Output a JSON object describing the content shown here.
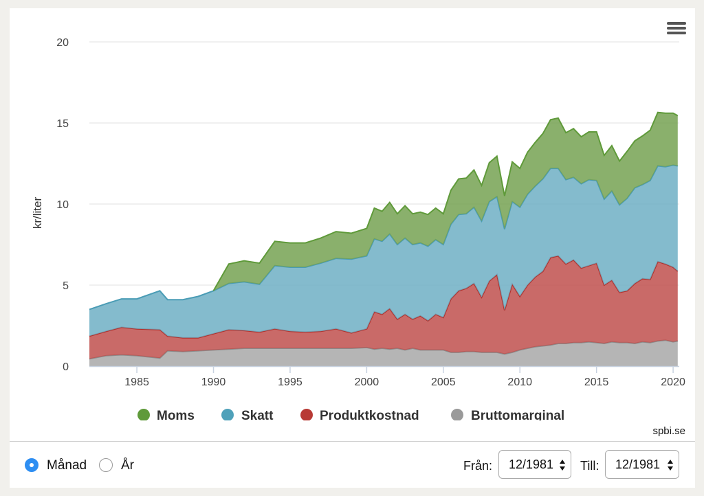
{
  "chart_data": {
    "type": "area",
    "stacking": "normal",
    "ylabel": "kr/liter",
    "xlabel": "",
    "xlim": [
      1981.9,
      2020.4
    ],
    "ylim": [
      0,
      20
    ],
    "y_ticks": [
      "0",
      "5",
      "10",
      "15",
      "20"
    ],
    "x_ticks": [
      "1985",
      "1990",
      "1995",
      "2000",
      "2005",
      "2010",
      "2015",
      "2020"
    ],
    "grid": "horizontal",
    "legend_position": "bottom-center",
    "credits": "spbi.se",
    "x": [
      1981.9,
      1983,
      1984,
      1985,
      1986.5,
      1987,
      1988,
      1989,
      1990,
      1991,
      1992,
      1993,
      1994,
      1995,
      1996,
      1997,
      1998,
      1999,
      2000,
      2000.5,
      2001,
      2001.5,
      2002,
      2002.5,
      2003,
      2003.5,
      2004,
      2004.5,
      2005,
      2005.5,
      2006,
      2006.5,
      2007,
      2007.5,
      2008,
      2008.5,
      2009,
      2009.5,
      2010,
      2010.5,
      2011,
      2011.5,
      2012,
      2012.5,
      2013,
      2013.5,
      2014,
      2014.5,
      2015,
      2015.5,
      2016,
      2016.5,
      2017,
      2017.5,
      2018,
      2018.5,
      2019,
      2019.5,
      2020,
      2020.3
    ],
    "series": [
      {
        "name": "Bruttomarginal",
        "color": "#a8a8a8",
        "values": [
          0.45,
          0.65,
          0.7,
          0.65,
          0.5,
          0.95,
          0.9,
          0.95,
          1.0,
          1.05,
          1.1,
          1.1,
          1.1,
          1.1,
          1.1,
          1.1,
          1.1,
          1.1,
          1.15,
          1.05,
          1.1,
          1.05,
          1.1,
          1.0,
          1.1,
          1.0,
          1.0,
          1.0,
          1.0,
          0.85,
          0.85,
          0.9,
          0.9,
          0.85,
          0.85,
          0.85,
          0.75,
          0.85,
          1.0,
          1.1,
          1.2,
          1.25,
          1.3,
          1.4,
          1.4,
          1.45,
          1.45,
          1.5,
          1.45,
          1.4,
          1.5,
          1.45,
          1.45,
          1.4,
          1.5,
          1.45,
          1.55,
          1.6,
          1.5,
          1.55
        ]
      },
      {
        "name": "Produktkostnad",
        "color": "#c0504d",
        "values": [
          1.4,
          1.5,
          1.7,
          1.65,
          1.75,
          0.9,
          0.85,
          0.8,
          1.0,
          1.2,
          1.1,
          1.0,
          1.2,
          1.05,
          1.0,
          1.05,
          1.2,
          0.95,
          1.15,
          2.3,
          2.1,
          2.5,
          1.8,
          2.2,
          1.8,
          2.1,
          1.8,
          2.2,
          2.0,
          3.3,
          3.8,
          3.9,
          4.2,
          3.4,
          4.4,
          4.8,
          2.7,
          4.2,
          3.3,
          3.9,
          4.3,
          4.6,
          5.4,
          5.4,
          4.9,
          5.1,
          4.6,
          4.7,
          4.9,
          3.6,
          3.8,
          3.1,
          3.2,
          3.7,
          3.9,
          3.9,
          4.9,
          4.7,
          4.6,
          4.3
        ]
      },
      {
        "name": "Skatt",
        "color": "#6fafc4",
        "values": [
          1.65,
          1.7,
          1.75,
          1.85,
          2.4,
          2.25,
          2.35,
          2.55,
          2.65,
          2.85,
          3.0,
          2.95,
          3.9,
          3.95,
          4.0,
          4.2,
          4.35,
          4.55,
          4.5,
          4.5,
          4.5,
          4.6,
          4.6,
          4.7,
          4.6,
          4.5,
          4.6,
          4.6,
          4.5,
          4.6,
          4.7,
          4.6,
          4.7,
          4.7,
          4.9,
          4.8,
          5.0,
          5.1,
          5.5,
          5.6,
          5.6,
          5.7,
          5.5,
          5.4,
          5.2,
          5.1,
          5.2,
          5.3,
          5.1,
          5.3,
          5.5,
          5.4,
          5.7,
          5.9,
          5.8,
          6.1,
          5.9,
          6.0,
          6.3,
          6.5
        ]
      },
      {
        "name": "Moms",
        "color": "#76a252",
        "values": [
          0.0,
          0.0,
          0.0,
          0.0,
          0.0,
          0.0,
          0.0,
          0.0,
          0.0,
          1.2,
          1.3,
          1.3,
          1.5,
          1.5,
          1.5,
          1.55,
          1.65,
          1.6,
          1.7,
          1.9,
          1.85,
          1.95,
          1.9,
          2.0,
          1.9,
          1.9,
          1.95,
          1.95,
          1.9,
          2.1,
          2.2,
          2.2,
          2.3,
          2.2,
          2.4,
          2.5,
          2.05,
          2.45,
          2.4,
          2.6,
          2.7,
          2.8,
          3.0,
          3.1,
          2.9,
          3.0,
          2.9,
          2.95,
          3.0,
          2.7,
          2.8,
          2.7,
          2.9,
          2.9,
          3.0,
          3.1,
          3.3,
          3.3,
          3.2,
          3.1
        ]
      }
    ]
  },
  "legend": {
    "moms": "Moms",
    "skatt": "Skatt",
    "produktkostnad": "Produktkostnad",
    "bruttomarginal": "Bruttomarginal"
  },
  "controls": {
    "monthly_label": "Månad",
    "yearly_label": "År",
    "from_label": "Från:",
    "from_value": "12/1981",
    "to_label": "Till:",
    "to_value": "12/1981",
    "selected_period": "Månad"
  },
  "icons": {
    "menu": "hamburger-menu-icon",
    "select_arrows": "up-down-arrows-icon"
  }
}
